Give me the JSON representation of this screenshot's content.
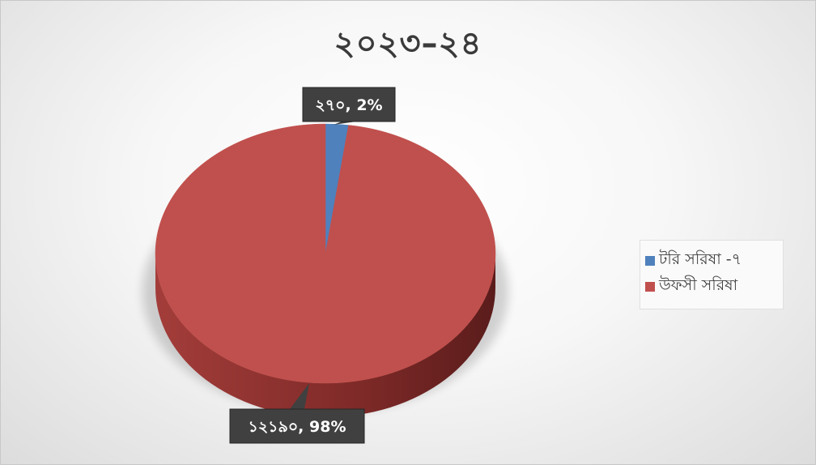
{
  "chart_data": {
    "type": "pie",
    "title": "২০২৩–২৪",
    "categories": [
      "টরি সরিষা -৭",
      "উফসী সরিষা"
    ],
    "values": [
      270,
      12190
    ],
    "value_labels": [
      "২৭০",
      "১২১৯০"
    ],
    "percent_labels": [
      "2%",
      "98%"
    ],
    "colors": [
      "#4F81BD",
      "#C0504D"
    ],
    "legend_position": "right",
    "style": "3d"
  }
}
